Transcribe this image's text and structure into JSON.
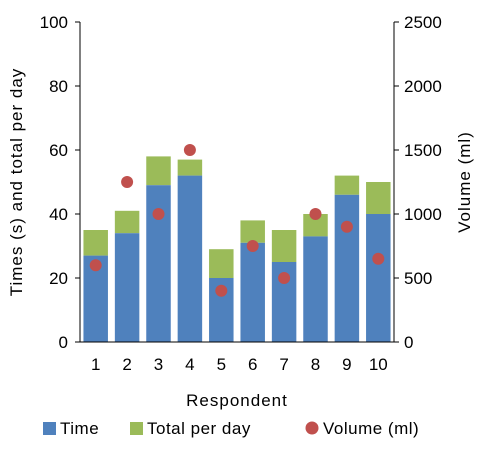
{
  "chart_data": {
    "type": "bar",
    "stacked": true,
    "categories": [
      "1",
      "2",
      "3",
      "4",
      "5",
      "6",
      "7",
      "8",
      "9",
      "10"
    ],
    "series": [
      {
        "name": "Time",
        "type": "bar",
        "axis": "left",
        "color": "#4f81bd",
        "values": [
          27,
          34,
          49,
          52,
          20,
          31,
          25,
          33,
          46,
          40
        ]
      },
      {
        "name": "Total per day",
        "type": "bar",
        "axis": "left",
        "color": "#9bbb59",
        "values": [
          35,
          41,
          58,
          57,
          29,
          38,
          35,
          40,
          52,
          50
        ],
        "note": "values are the top of the stacked bar (total)"
      },
      {
        "name": "Volume (ml)",
        "type": "scatter",
        "axis": "right",
        "color": "#c0504d",
        "values": [
          600,
          1250,
          1000,
          1500,
          400,
          750,
          500,
          1000,
          900,
          650
        ]
      }
    ],
    "xlabel": "Respondent",
    "ylabel": "Times (s) and total per day",
    "y2label": "Volume (ml)",
    "ylim": [
      0,
      100
    ],
    "y2lim": [
      0,
      2500
    ],
    "yticks": [
      "0",
      "20",
      "40",
      "60",
      "80",
      "100"
    ],
    "y2ticks": [
      "0",
      "500",
      "1000",
      "1500",
      "2000",
      "2500"
    ],
    "grid": false,
    "legend_position": "bottom"
  }
}
